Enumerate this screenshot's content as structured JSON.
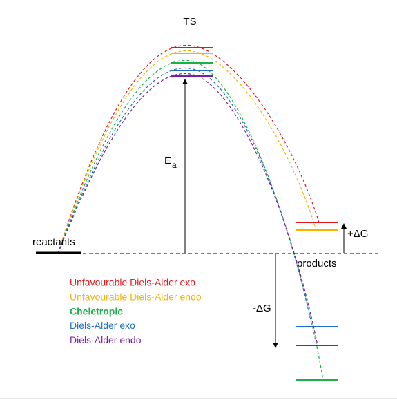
{
  "labels": {
    "ts": "TS",
    "ea": "E",
    "ea_sub": "a",
    "reactants": "reactants",
    "products": "products",
    "plus_dg": "+ΔG",
    "minus_dg": "-ΔG"
  },
  "legend": [
    {
      "label": "Unfavourable Diels-Alder exo",
      "color": "#e8141c"
    },
    {
      "label": "Unfavourable Diels-Alder endo",
      "color": "#f5b400"
    },
    {
      "label": "Cheletropic",
      "color": "#1daf4a"
    },
    {
      "label": "Diels-Alder exo",
      "color": "#1f70c1"
    },
    {
      "label": "Diels-Alder endo",
      "color": "#7a1fa3"
    }
  ]
}
